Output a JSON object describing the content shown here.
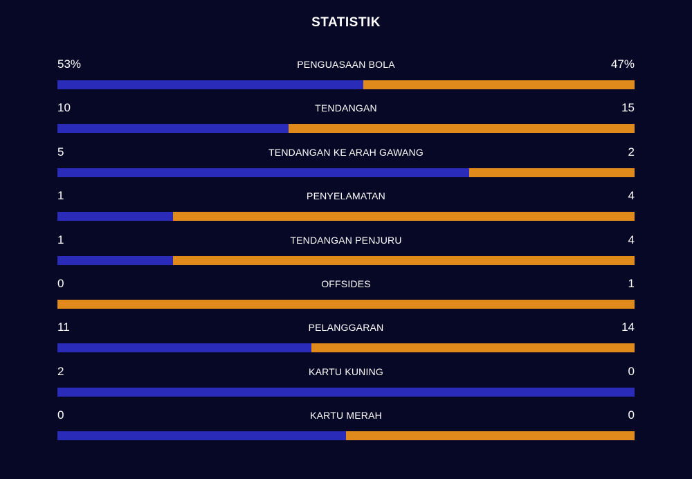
{
  "title": "STATISTIK",
  "colors": {
    "home": "#2a2bb8",
    "away": "#e08a1b",
    "background": "#070726"
  },
  "stats": [
    {
      "label": "PENGUASAAN BOLA",
      "home": "53%",
      "away": "47%",
      "home_share": 0.53
    },
    {
      "label": "TENDANGAN",
      "home": "10",
      "away": "15",
      "home_share": 0.4
    },
    {
      "label": "TENDANGAN KE ARAH GAWANG",
      "home": "5",
      "away": "2",
      "home_share": 0.714
    },
    {
      "label": "PENYELAMATAN",
      "home": "1",
      "away": "4",
      "home_share": 0.2
    },
    {
      "label": "TENDANGAN PENJURU",
      "home": "1",
      "away": "4",
      "home_share": 0.2
    },
    {
      "label": "OFFSIDES",
      "home": "0",
      "away": "1",
      "home_share": 0.0
    },
    {
      "label": "PELANGGARAN",
      "home": "11",
      "away": "14",
      "home_share": 0.44
    },
    {
      "label": "KARTU KUNING",
      "home": "2",
      "away": "0",
      "home_share": 1.0
    },
    {
      "label": "KARTU MERAH",
      "home": "0",
      "away": "0",
      "home_share": 0.5
    }
  ]
}
